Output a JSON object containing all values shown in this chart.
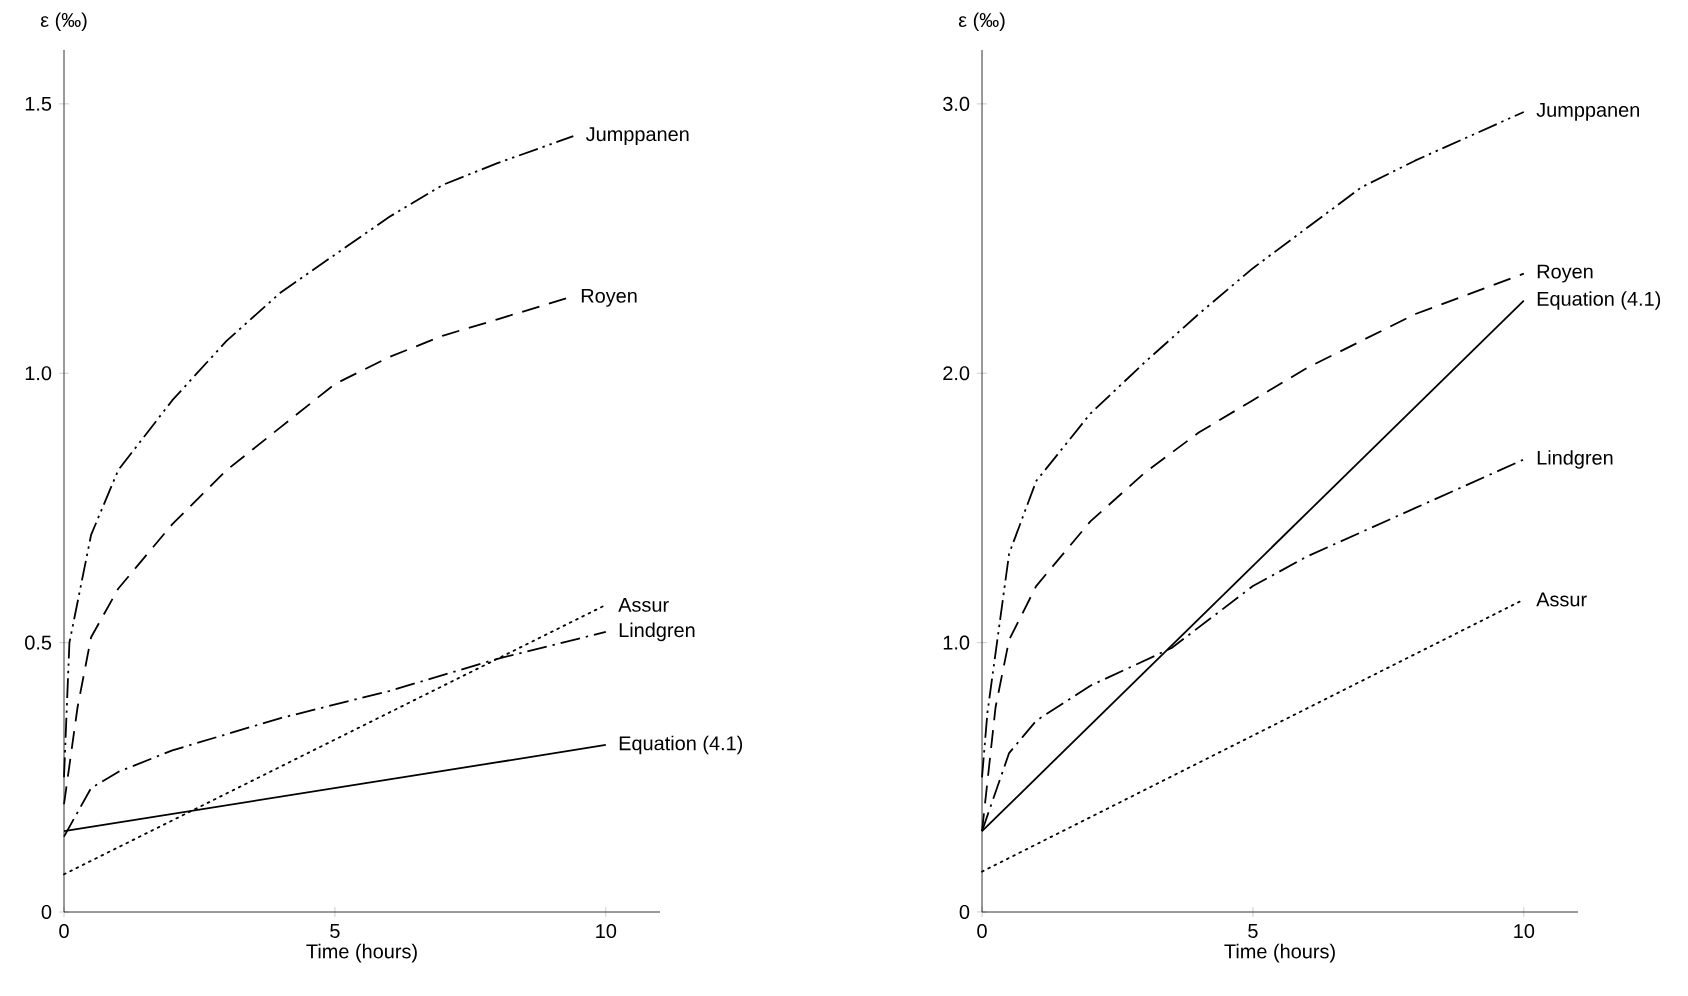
{
  "chart_data": [
    {
      "type": "line",
      "xlabel": "Time (hours)",
      "ylabel": "ε (‰)",
      "xlim": [
        0,
        11
      ],
      "ylim": [
        0,
        1.6
      ],
      "xticks": [
        0,
        5,
        10
      ],
      "yticks": [
        0,
        0.5,
        {
          "value": 1,
          "label": "1.0"
        },
        1.5
      ],
      "series": [
        {
          "name": "Jumppanen",
          "color": "#000000",
          "line_style": "dashdotdotted",
          "x": [
            0,
            0.1,
            0.5,
            1,
            2,
            3,
            4,
            5,
            6,
            7,
            8,
            9.4
          ],
          "values": [
            0.25,
            0.5,
            0.7,
            0.82,
            0.95,
            1.06,
            1.15,
            1.22,
            1.29,
            1.35,
            1.39,
            1.44
          ]
        },
        {
          "name": "Royen",
          "color": "#000000",
          "line_style": "dashed",
          "x": [
            0,
            0.25,
            0.5,
            1,
            2,
            3,
            4,
            5,
            6,
            7,
            8,
            9.3
          ],
          "values": [
            0.2,
            0.38,
            0.51,
            0.6,
            0.72,
            0.82,
            0.9,
            0.98,
            1.03,
            1.07,
            1.1,
            1.14
          ]
        },
        {
          "name": "Assur",
          "color": "#000000",
          "line_style": "dotted",
          "x": [
            0,
            10
          ],
          "values": [
            0.07,
            0.57
          ]
        },
        {
          "name": "Lindgren",
          "color": "#000000",
          "line_style": "dashdotted",
          "x": [
            0,
            0.5,
            1,
            2,
            4,
            6,
            8,
            10
          ],
          "values": [
            0.14,
            0.23,
            0.26,
            0.3,
            0.36,
            0.41,
            0.47,
            0.52
          ]
        },
        {
          "name": "Equation (4.1)",
          "color": "#000000",
          "line_style": "solid",
          "x": [
            0,
            10
          ],
          "values": [
            0.15,
            0.31
          ]
        }
      ]
    },
    {
      "type": "line",
      "xlabel": "Time (hours)",
      "ylabel": "ε (‰)",
      "xlim": [
        0,
        11
      ],
      "ylim": [
        0,
        3.2
      ],
      "xticks": [
        0,
        5,
        10
      ],
      "yticks": [
        0,
        {
          "value": 1,
          "label": "1.0"
        },
        {
          "value": 2,
          "label": "2.0"
        },
        {
          "value": 3,
          "label": "3.0"
        }
      ],
      "series": [
        {
          "name": "Jumppanen",
          "color": "#000000",
          "line_style": "dashdotdotted",
          "x": [
            0,
            0.1,
            0.5,
            1,
            2,
            3,
            4,
            5,
            6,
            7,
            8,
            10
          ],
          "values": [
            0.5,
            0.74,
            1.33,
            1.6,
            1.85,
            2.04,
            2.22,
            2.39,
            2.54,
            2.69,
            2.79,
            2.97
          ]
        },
        {
          "name": "Royen",
          "color": "#000000",
          "line_style": "dashed",
          "x": [
            0,
            0.25,
            0.5,
            1,
            2,
            3,
            4,
            5,
            6,
            7,
            8,
            10
          ],
          "values": [
            0.3,
            0.76,
            1.01,
            1.21,
            1.45,
            1.63,
            1.78,
            1.9,
            2.02,
            2.12,
            2.22,
            2.37
          ]
        },
        {
          "name": "Equation (4.1)",
          "color": "#000000",
          "line_style": "solid",
          "x": [
            0,
            10
          ],
          "values": [
            0.3,
            2.27
          ]
        },
        {
          "name": "Lindgren",
          "color": "#000000",
          "line_style": "dashdotted",
          "x": [
            0,
            0.5,
            1,
            2,
            3.5,
            5,
            6,
            8,
            10
          ],
          "values": [
            0.3,
            0.59,
            0.71,
            0.84,
            0.98,
            1.21,
            1.32,
            1.5,
            1.68
          ]
        },
        {
          "name": "Assur",
          "color": "#000000",
          "line_style": "dotted",
          "x": [
            0,
            10
          ],
          "values": [
            0.15,
            1.16
          ]
        }
      ]
    }
  ]
}
